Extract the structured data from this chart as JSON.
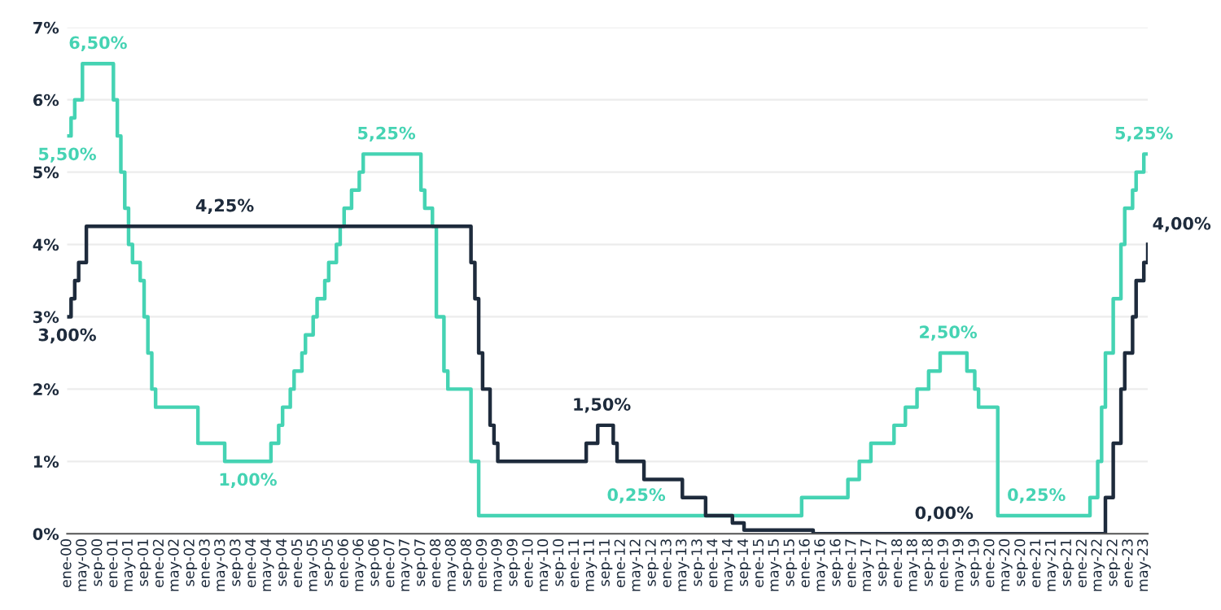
{
  "chart_data": {
    "type": "step",
    "ylim": [
      0,
      7
    ],
    "yticks": [
      {
        "value": 0,
        "label": "0%"
      },
      {
        "value": 1,
        "label": "1%"
      },
      {
        "value": 2,
        "label": "2%"
      },
      {
        "value": 3,
        "label": "3%"
      },
      {
        "value": 4,
        "label": "4%"
      },
      {
        "value": 5,
        "label": "5%"
      },
      {
        "value": 6,
        "label": "6%"
      },
      {
        "value": 7,
        "label": "7%"
      }
    ],
    "xlim": [
      "2000-01",
      "2023-06"
    ],
    "xticks": [
      {
        "value": "2000-01",
        "label": "ene-00"
      },
      {
        "value": "2000-05",
        "label": "may-00"
      },
      {
        "value": "2000-09",
        "label": "sep-00"
      },
      {
        "value": "2001-01",
        "label": "ene-01"
      },
      {
        "value": "2001-05",
        "label": "may-01"
      },
      {
        "value": "2001-09",
        "label": "sep-01"
      },
      {
        "value": "2002-01",
        "label": "ene-02"
      },
      {
        "value": "2002-05",
        "label": "may-02"
      },
      {
        "value": "2002-09",
        "label": "sep-02"
      },
      {
        "value": "2003-01",
        "label": "ene-03"
      },
      {
        "value": "2003-05",
        "label": "may-03"
      },
      {
        "value": "2003-09",
        "label": "sep-03"
      },
      {
        "value": "2004-01",
        "label": "ene-04"
      },
      {
        "value": "2004-05",
        "label": "may-04"
      },
      {
        "value": "2004-09",
        "label": "sep-04"
      },
      {
        "value": "2005-01",
        "label": "ene-05"
      },
      {
        "value": "2005-05",
        "label": "may-05"
      },
      {
        "value": "2005-09",
        "label": "sep-05"
      },
      {
        "value": "2006-01",
        "label": "ene-06"
      },
      {
        "value": "2006-05",
        "label": "may-06"
      },
      {
        "value": "2006-09",
        "label": "sep-06"
      },
      {
        "value": "2007-01",
        "label": "ene-07"
      },
      {
        "value": "2007-05",
        "label": "may-07"
      },
      {
        "value": "2007-09",
        "label": "sep-07"
      },
      {
        "value": "2008-01",
        "label": "ene-08"
      },
      {
        "value": "2008-05",
        "label": "may-08"
      },
      {
        "value": "2008-09",
        "label": "sep-08"
      },
      {
        "value": "2009-01",
        "label": "ene-09"
      },
      {
        "value": "2009-05",
        "label": "may-09"
      },
      {
        "value": "2009-09",
        "label": "sep-09"
      },
      {
        "value": "2010-01",
        "label": "ene-10"
      },
      {
        "value": "2010-05",
        "label": "may-10"
      },
      {
        "value": "2010-09",
        "label": "sep-10"
      },
      {
        "value": "2011-01",
        "label": "ene-11"
      },
      {
        "value": "2011-05",
        "label": "may-11"
      },
      {
        "value": "2011-09",
        "label": "sep-11"
      },
      {
        "value": "2012-01",
        "label": "ene-12"
      },
      {
        "value": "2012-05",
        "label": "may-12"
      },
      {
        "value": "2012-09",
        "label": "sep-12"
      },
      {
        "value": "2013-01",
        "label": "ene-13"
      },
      {
        "value": "2013-05",
        "label": "may-13"
      },
      {
        "value": "2013-09",
        "label": "sep-13"
      },
      {
        "value": "2014-01",
        "label": "ene-14"
      },
      {
        "value": "2014-05",
        "label": "may-14"
      },
      {
        "value": "2014-09",
        "label": "sep-14"
      },
      {
        "value": "2015-01",
        "label": "ene-15"
      },
      {
        "value": "2015-05",
        "label": "may-15"
      },
      {
        "value": "2015-09",
        "label": "sep-15"
      },
      {
        "value": "2016-01",
        "label": "ene-16"
      },
      {
        "value": "2016-05",
        "label": "may-16"
      },
      {
        "value": "2016-09",
        "label": "sep-16"
      },
      {
        "value": "2017-01",
        "label": "ene-17"
      },
      {
        "value": "2017-05",
        "label": "may-17"
      },
      {
        "value": "2017-09",
        "label": "sep-17"
      },
      {
        "value": "2018-01",
        "label": "ene-18"
      },
      {
        "value": "2018-05",
        "label": "may-18"
      },
      {
        "value": "2018-09",
        "label": "sep-18"
      },
      {
        "value": "2019-01",
        "label": "ene-19"
      },
      {
        "value": "2019-05",
        "label": "may-19"
      },
      {
        "value": "2019-09",
        "label": "sep-19"
      },
      {
        "value": "2020-01",
        "label": "ene-20"
      },
      {
        "value": "2020-05",
        "label": "may-20"
      },
      {
        "value": "2020-09",
        "label": "sep-20"
      },
      {
        "value": "2021-01",
        "label": "ene-21"
      },
      {
        "value": "2021-05",
        "label": "may-21"
      },
      {
        "value": "2021-09",
        "label": "sep-21"
      },
      {
        "value": "2022-01",
        "label": "ene-22"
      },
      {
        "value": "2022-05",
        "label": "may-22"
      },
      {
        "value": "2022-09",
        "label": "sep-22"
      },
      {
        "value": "2023-01",
        "label": "ene-23"
      },
      {
        "value": "2023-05",
        "label": "may-23"
      }
    ],
    "grid": "y",
    "series": [
      {
        "color": "#45d3b3",
        "x": [
          "2000-01",
          "2000-02",
          "2000-03",
          "2000-05",
          "2001-01",
          "2001-02",
          "2001-03",
          "2001-04",
          "2001-05",
          "2001-06",
          "2001-08",
          "2001-09",
          "2001-10",
          "2001-11",
          "2001-12",
          "2002-11",
          "2003-06",
          "2004-06",
          "2004-08",
          "2004-09",
          "2004-11",
          "2004-12",
          "2005-02",
          "2005-03",
          "2005-05",
          "2005-06",
          "2005-08",
          "2005-09",
          "2005-11",
          "2005-12",
          "2006-01",
          "2006-03",
          "2006-05",
          "2006-06",
          "2007-09",
          "2007-10",
          "2007-12",
          "2008-01",
          "2008-03",
          "2008-04",
          "2008-10",
          "2008-12",
          "2015-12",
          "2016-12",
          "2017-03",
          "2017-06",
          "2017-12",
          "2018-03",
          "2018-06",
          "2018-09",
          "2018-12",
          "2019-07",
          "2019-09",
          "2019-10",
          "2020-03",
          "2022-03",
          "2022-05",
          "2022-06",
          "2022-07",
          "2022-09",
          "2022-11",
          "2022-12",
          "2023-02",
          "2023-03",
          "2023-05",
          "2023-06"
        ],
        "values": [
          5.5,
          5.75,
          6.0,
          6.5,
          6.0,
          5.5,
          5.0,
          4.5,
          4.0,
          3.75,
          3.5,
          3.0,
          2.5,
          2.0,
          1.75,
          1.25,
          1.0,
          1.25,
          1.5,
          1.75,
          2.0,
          2.25,
          2.5,
          2.75,
          3.0,
          3.25,
          3.5,
          3.75,
          4.0,
          4.25,
          4.5,
          4.75,
          5.0,
          5.25,
          4.75,
          4.5,
          4.25,
          3.0,
          2.25,
          2.0,
          1.0,
          0.25,
          0.5,
          0.75,
          1.0,
          1.25,
          1.5,
          1.75,
          2.0,
          2.25,
          2.5,
          2.25,
          2.0,
          1.75,
          0.25,
          0.5,
          1.0,
          1.75,
          2.5,
          3.25,
          4.0,
          4.5,
          4.75,
          5.0,
          5.25,
          5.25
        ]
      },
      {
        "color": "#1e2b3c",
        "x": [
          "2000-01",
          "2000-02",
          "2000-03",
          "2000-04",
          "2000-06",
          "2008-10",
          "2008-11",
          "2008-12",
          "2009-01",
          "2009-03",
          "2009-04",
          "2009-05",
          "2011-04",
          "2011-07",
          "2011-11",
          "2011-12",
          "2012-07",
          "2013-05",
          "2013-11",
          "2014-06",
          "2014-09",
          "2016-03",
          "2022-07",
          "2022-09",
          "2022-11",
          "2022-12",
          "2023-02",
          "2023-03",
          "2023-05",
          "2023-06"
        ],
        "values": [
          3.0,
          3.25,
          3.5,
          3.75,
          4.25,
          3.75,
          3.25,
          2.5,
          2.0,
          1.5,
          1.25,
          1.0,
          1.25,
          1.5,
          1.25,
          1.0,
          0.75,
          0.5,
          0.25,
          0.15,
          0.05,
          0.0,
          0.5,
          1.25,
          2.0,
          2.5,
          3.0,
          3.5,
          3.75,
          4.0
        ]
      }
    ],
    "annotations": [
      {
        "text": "6,50%",
        "x": "2000-09",
        "y": 6.5
      },
      {
        "text": "5,50%",
        "x": "2000-01",
        "y": 5.5
      },
      {
        "text": "3,00%",
        "x": "2000-01",
        "y": 3.0
      },
      {
        "text": "4,25%",
        "x": "2003-06",
        "y": 4.25
      },
      {
        "text": "1,00%",
        "x": "2003-12",
        "y": 1.0
      },
      {
        "text": "5,25%",
        "x": "2006-12",
        "y": 5.25
      },
      {
        "text": "1,50%",
        "x": "2011-08",
        "y": 1.5
      },
      {
        "text": "0,25%",
        "x": "2012-05",
        "y": 0.25
      },
      {
        "text": "2,50%",
        "x": "2019-02",
        "y": 2.5
      },
      {
        "text": "0,00%",
        "x": "2019-01",
        "y": 0.0
      },
      {
        "text": "0,25%",
        "x": "2021-01",
        "y": 0.25
      },
      {
        "text": "5,25%",
        "x": "2023-05",
        "y": 5.25
      },
      {
        "text": "4,00%",
        "x": "2023-06",
        "y": 4.0
      }
    ]
  }
}
